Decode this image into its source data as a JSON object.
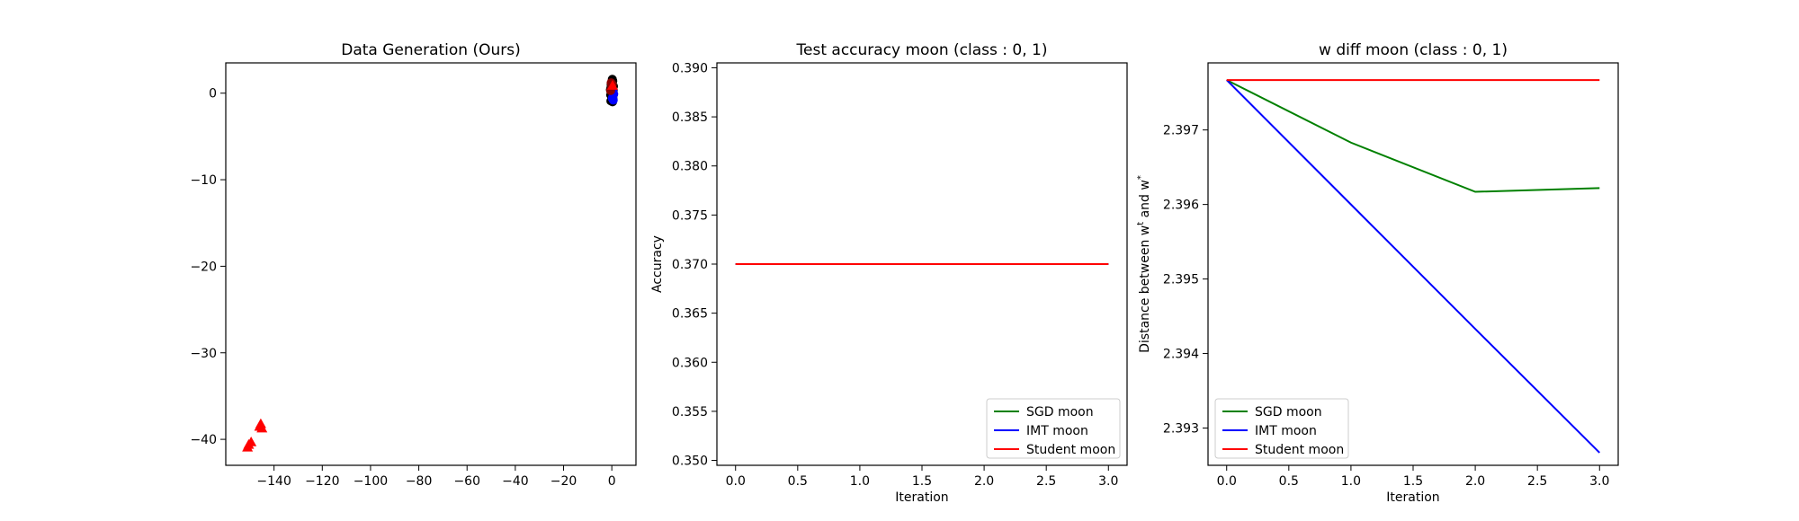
{
  "chart_data": [
    {
      "type": "scatter",
      "title": "Data Generation (Ours)",
      "xlabel": "",
      "ylabel": "",
      "xlim": [
        -160,
        10
      ],
      "ylim": [
        -43,
        3.5
      ],
      "xticks": [
        -140,
        -120,
        -100,
        -80,
        -60,
        -40,
        -20,
        0
      ],
      "xtick_labels": [
        "−140",
        "−120",
        "−100",
        "−80",
        "−60",
        "−40",
        "−20",
        "0"
      ],
      "yticks": [
        0,
        -10,
        -20,
        -30,
        -40
      ],
      "ytick_labels": [
        "0",
        "−10",
        "−20",
        "−30",
        "−40"
      ],
      "grid": false,
      "series": [
        {
          "marker": "circle",
          "color": "#000000",
          "points": [
            [
              0.0,
              1.2
            ],
            [
              0.3,
              0.9
            ],
            [
              -0.4,
              0.6
            ],
            [
              0.6,
              0.3
            ],
            [
              -0.2,
              0.1
            ],
            [
              0.2,
              -0.3
            ],
            [
              0.5,
              -0.6
            ],
            [
              -0.5,
              -0.2
            ],
            [
              0.1,
              0.5
            ],
            [
              -0.1,
              -0.8
            ],
            [
              0.4,
              1.4
            ],
            [
              -0.3,
              1.0
            ],
            [
              0.0,
              -0.5
            ],
            [
              0.7,
              0.8
            ],
            [
              -0.6,
              0.4
            ],
            [
              0.2,
              1.6
            ],
            [
              0.3,
              -1.0
            ],
            [
              -0.4,
              -0.9
            ],
            [
              0.1,
              0.0
            ],
            [
              0.6,
              -0.2
            ]
          ]
        },
        {
          "marker": "circle",
          "color": "#0000ff",
          "points": [
            [
              0.4,
              -0.4
            ],
            [
              0.6,
              -0.8
            ],
            [
              0.2,
              -0.6
            ],
            [
              0.8,
              -0.1
            ],
            [
              0.5,
              0.2
            ]
          ]
        },
        {
          "marker": "circle",
          "color": "#8b0000",
          "points": [
            [
              -0.3,
              1.2
            ],
            [
              0.0,
              0.8
            ],
            [
              -0.5,
              0.3
            ],
            [
              0.2,
              1.0
            ]
          ]
        },
        {
          "marker": "triangle",
          "color": "#ff0000",
          "points": [
            [
              -150.5,
              -40.6
            ],
            [
              -149.5,
              -40.3
            ],
            [
              -151.0,
              -40.9
            ],
            [
              -145.5,
              -38.2
            ],
            [
              -145.0,
              -38.7
            ],
            [
              -146.0,
              -38.5
            ],
            [
              0.3,
              0.9
            ]
          ]
        }
      ]
    },
    {
      "type": "line",
      "title": "Test accuracy moon (class : 0, 1)",
      "xlabel": "Iteration",
      "ylabel": "Accuracy",
      "xlim": [
        -0.15,
        3.15
      ],
      "ylim": [
        0.3495,
        0.3905
      ],
      "xticks": [
        0.0,
        0.5,
        1.0,
        1.5,
        2.0,
        2.5,
        3.0
      ],
      "xtick_labels": [
        "0.0",
        "0.5",
        "1.0",
        "1.5",
        "2.0",
        "2.5",
        "3.0"
      ],
      "yticks": [
        0.35,
        0.355,
        0.36,
        0.365,
        0.37,
        0.375,
        0.38,
        0.385,
        0.39
      ],
      "ytick_labels": [
        "0.350",
        "0.355",
        "0.360",
        "0.365",
        "0.370",
        "0.375",
        "0.380",
        "0.385",
        "0.390"
      ],
      "grid": false,
      "legend_position": "lower-right",
      "x": [
        0,
        1,
        2,
        3
      ],
      "series": [
        {
          "name": "SGD moon",
          "color": "#008000",
          "values": [
            0.37,
            0.37,
            0.37,
            0.37
          ]
        },
        {
          "name": "IMT moon",
          "color": "#0000ff",
          "values": [
            0.37,
            0.37,
            0.37,
            0.37
          ]
        },
        {
          "name": "Student moon",
          "color": "#ff0000",
          "values": [
            0.37,
            0.37,
            0.37,
            0.37
          ]
        }
      ]
    },
    {
      "type": "line",
      "title": "w diff moon (class : 0, 1)",
      "xlabel": "Iteration",
      "ylabel": "Distance between w",
      "ylabel_sup1": "t",
      "ylabel_mid": " and w",
      "ylabel_sup2": "*",
      "xlim": [
        -0.15,
        3.15
      ],
      "ylim": [
        2.3925,
        2.3979
      ],
      "xticks": [
        0.0,
        0.5,
        1.0,
        1.5,
        2.0,
        2.5,
        3.0
      ],
      "xtick_labels": [
        "0.0",
        "0.5",
        "1.0",
        "1.5",
        "2.0",
        "2.5",
        "3.0"
      ],
      "yticks": [
        2.393,
        2.394,
        2.395,
        2.396,
        2.397
      ],
      "ytick_labels": [
        "2.393",
        "2.394",
        "2.395",
        "2.396",
        "2.397"
      ],
      "grid": false,
      "legend_position": "lower-left",
      "x": [
        0,
        1,
        2,
        3
      ],
      "series": [
        {
          "name": "SGD moon",
          "color": "#008000",
          "values": [
            2.39767,
            2.39683,
            2.39617,
            2.39622
          ]
        },
        {
          "name": "IMT moon",
          "color": "#0000ff",
          "values": [
            2.39767,
            2.396,
            2.39433,
            2.39267
          ]
        },
        {
          "name": "Student moon",
          "color": "#ff0000",
          "values": [
            2.39767,
            2.39767,
            2.39767,
            2.39767
          ]
        }
      ]
    }
  ]
}
